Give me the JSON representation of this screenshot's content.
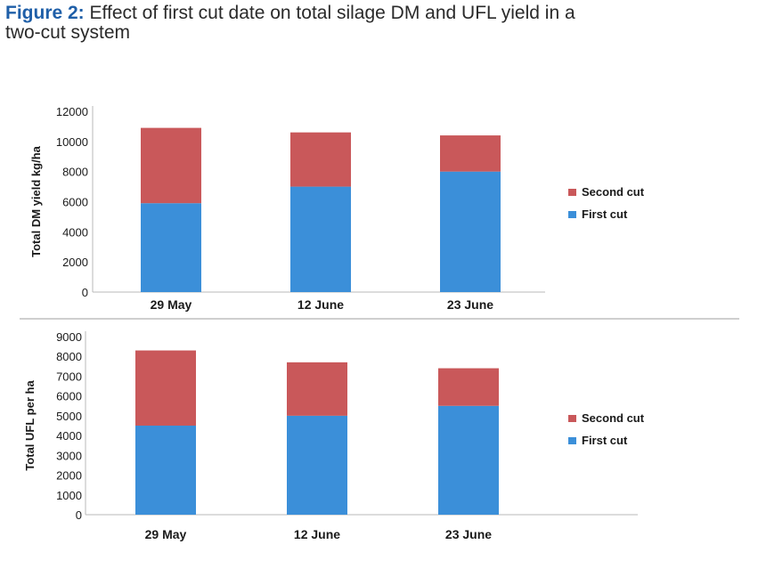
{
  "figure": {
    "label": "Figure 2:",
    "caption_line1": "Effect of first cut date on total silage DM and UFL yield in a",
    "caption_line2": "two-cut system"
  },
  "colors": {
    "first_cut": "#3b8fd9",
    "second_cut": "#c9585a",
    "axis": "#b8b8b8"
  },
  "chart_data": [
    {
      "type": "bar",
      "stacked": true,
      "title": "",
      "xlabel": "",
      "ylabel": "Total DM yield kg/ha",
      "categories": [
        "29 May",
        "12 June",
        "23 June"
      ],
      "series": [
        {
          "name": "First cut",
          "values": [
            5900,
            7000,
            8000
          ]
        },
        {
          "name": "Second cut",
          "values": [
            5000,
            3600,
            2400
          ]
        }
      ],
      "ylim": [
        0,
        12000
      ],
      "yticks": [
        "12000",
        "10000",
        "8000",
        "6000",
        "4000",
        "2000",
        "0"
      ],
      "legend": [
        "Second cut",
        "First cut"
      ],
      "legend_position": "right"
    },
    {
      "type": "bar",
      "stacked": true,
      "title": "",
      "xlabel": "",
      "ylabel": "Total UFL per ha",
      "categories": [
        "29 May",
        "12 June",
        "23 June"
      ],
      "series": [
        {
          "name": "First cut",
          "values": [
            4500,
            5000,
            5500
          ]
        },
        {
          "name": "Second cut",
          "values": [
            3800,
            2700,
            1900
          ]
        }
      ],
      "ylim": [
        0,
        9000
      ],
      "yticks": [
        "9000",
        "8000",
        "7000",
        "6000",
        "5000",
        "4000",
        "3000",
        "2000",
        "1000",
        "0"
      ],
      "legend": [
        "Second cut",
        "First cut"
      ],
      "legend_position": "right"
    }
  ]
}
